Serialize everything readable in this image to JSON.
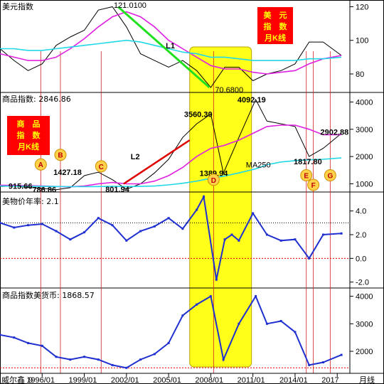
{
  "chart_data": [
    {
      "type": "line",
      "panel": "dollar-index",
      "title": "美元指数",
      "yticks": [
        80,
        100,
        120
      ],
      "ylim": [
        69,
        124
      ],
      "badge": [
        "美　元",
        "指　数",
        "月K线"
      ],
      "colors": {
        "price": "#000000",
        "ma_short": "#e020e0",
        "ma_long": "#20d8e8",
        "trend": "#20e020",
        "badge_bg": "#ff0000",
        "badge_text": "#ffff00"
      },
      "x": [
        1993,
        1994,
        1995,
        1996,
        1997,
        1998,
        1999,
        2000,
        2001,
        2002,
        2003,
        2004,
        2005,
        2006,
        2007,
        2008,
        2009,
        2010,
        2011,
        2012,
        2013,
        2014,
        2015,
        2016,
        2017.3
      ],
      "series": [
        {
          "key": "price",
          "values": [
            95,
            88,
            82,
            86,
            97,
            102,
            106,
            118,
            120,
            108,
            92,
            88,
            84,
            88,
            82,
            72,
            84,
            84,
            76,
            80,
            82,
            86,
            99,
            99,
            91
          ]
        },
        {
          "key": "ma_short",
          "values": [
            92,
            90,
            88,
            88,
            90,
            95,
            101,
            108,
            114,
            117,
            114,
            108,
            100,
            95,
            90,
            85,
            83,
            83,
            81,
            80,
            81,
            82,
            86,
            89,
            91
          ]
        },
        {
          "key": "ma_long",
          "values": [
            95,
            95,
            94,
            94,
            95,
            96,
            97,
            98,
            99,
            100,
            99,
            97,
            95,
            93,
            92,
            90,
            90,
            89,
            88,
            88,
            88,
            88,
            89,
            89,
            90
          ]
        }
      ],
      "annotations": [
        {
          "text": "121.0100",
          "x": 2001.1,
          "y": 121.01
        },
        {
          "text": "70.6800",
          "x": 2008.3,
          "y": 70.68
        },
        {
          "text": "L1",
          "x": 2004.8,
          "y": 97
        }
      ],
      "trendline": {
        "from": [
          2001.4,
          120
        ],
        "to": [
          2007.9,
          72
        ],
        "label": "L1"
      }
    },
    {
      "type": "line",
      "panel": "commodity-index",
      "title": "商品指数: 2846.86",
      "yticks": [
        1000,
        2000,
        3000,
        4000
      ],
      "ylim": [
        700,
        4350
      ],
      "badge": [
        "商　品",
        "指　数",
        "月K线"
      ],
      "colors": {
        "price": "#000000",
        "ma": "#e020e0",
        "ma250": "#20d8e8",
        "trend": "#e00000",
        "badge_bg": "#ff0000",
        "badge_text": "#ffff00"
      },
      "x": [
        1993,
        1994,
        1995,
        1996,
        1997,
        1998,
        1999,
        2000,
        2001,
        2002,
        2003,
        2004,
        2005,
        2006,
        2007,
        2008,
        2008.9,
        2010,
        2011.2,
        2012,
        2013,
        2014,
        2015,
        2016,
        2017.3
      ],
      "series": [
        {
          "key": "price",
          "values": [
            900,
            915,
            870,
            830,
            786,
            860,
            1300,
            1427,
            1150,
            802,
            1000,
            1400,
            1900,
            2700,
            3200,
            3560,
            1390,
            2700,
            4092,
            3300,
            3200,
            3100,
            2000,
            2300,
            2847
          ]
        },
        {
          "key": "ma",
          "values": [
            950,
            940,
            930,
            920,
            900,
            890,
            920,
            1000,
            1050,
            1000,
            1000,
            1100,
            1300,
            1600,
            2000,
            2300,
            2400,
            2600,
            2900,
            3100,
            3150,
            3150,
            3000,
            2800,
            2800
          ]
        },
        {
          "key": "ma250",
          "values": [
            920,
            915,
            910,
            905,
            900,
            895,
            895,
            900,
            905,
            900,
            905,
            920,
            960,
            1020,
            1100,
            1200,
            1280,
            1400,
            1550,
            1700,
            1800,
            1850,
            1880,
            1900,
            1950
          ]
        }
      ],
      "annotations": [
        {
          "text": "915.66",
          "x": 1993.6,
          "y": 915.66
        },
        {
          "text": "786.86",
          "x": 1995.3,
          "y": 786.86
        },
        {
          "text": "1427.18",
          "x": 1996.8,
          "y": 1427.18
        },
        {
          "text": "801.94",
          "x": 2000.5,
          "y": 801.94
        },
        {
          "text": "3560.30",
          "x": 2006.1,
          "y": 3560.3
        },
        {
          "text": "1389.94",
          "x": 2007.2,
          "y": 1389.94
        },
        {
          "text": "4092.19",
          "x": 2009.9,
          "y": 4092.19
        },
        {
          "text": "1817.80",
          "x": 2013.9,
          "y": 1817.8
        },
        {
          "text": "2902.88",
          "x": 2015.8,
          "y": 2902.88
        },
        {
          "text": "MA250",
          "x": 2010.5,
          "y": 1700
        },
        {
          "text": "L2",
          "x": 2002.3,
          "y": 2000
        }
      ],
      "trendline": {
        "from": [
          2001.8,
          1000
        ],
        "to": [
          2006.5,
          2600
        ],
        "label": "L2"
      }
    },
    {
      "type": "line",
      "panel": "dollar-inflation",
      "title": "美物价年率: 2.1",
      "yticks": [
        -2.0,
        0.0,
        2.0,
        4.0
      ],
      "ylim": [
        -2.5,
        5.6
      ],
      "refline": 0,
      "dotted_level": 3.0,
      "colors": {
        "line": "#2030d0",
        "marker": "#2030d0",
        "zero": "#e00000",
        "dots": "#000000"
      },
      "x": [
        1993,
        1994,
        1995,
        1996,
        1997,
        1998,
        1999,
        2000,
        2001,
        2002,
        2003,
        2004,
        2005,
        2006,
        2007,
        2007.5,
        2008.4,
        2009,
        2009.5,
        2010,
        2011,
        2012,
        2013,
        2014,
        2015,
        2016,
        2017.3
      ],
      "series": [
        {
          "key": "cpi",
          "values": [
            3.0,
            2.6,
            2.8,
            2.9,
            2.3,
            1.6,
            2.2,
            3.4,
            2.8,
            1.5,
            2.3,
            2.7,
            3.4,
            2.5,
            4.1,
            5.2,
            -1.8,
            1.6,
            2.0,
            1.5,
            3.8,
            2.0,
            1.5,
            1.6,
            0.0,
            2.0,
            2.1
          ]
        }
      ]
    },
    {
      "type": "line",
      "panel": "commodity-in-dollar",
      "title": "商品指数美货币: 1868.57",
      "yticks": [
        2000,
        3000,
        4000
      ],
      "ylim": [
        1200,
        4300
      ],
      "refline": 1400,
      "colors": {
        "line": "#2030d0",
        "marker": "#2030d0",
        "ref": "#e00000"
      },
      "x": [
        1993,
        1994,
        1995,
        1996,
        1997,
        1998,
        1999,
        2000,
        2001,
        2002,
        2003,
        2004,
        2005,
        2006,
        2007,
        2008,
        2008.9,
        2010,
        2011.2,
        2012,
        2013,
        2014,
        2015,
        2016,
        2017.3
      ],
      "series": [
        {
          "key": "value",
          "values": [
            2600,
            2500,
            2300,
            2200,
            1800,
            1700,
            1800,
            1700,
            1500,
            1400,
            1700,
            1900,
            2300,
            3300,
            3700,
            4000,
            1700,
            3000,
            4000,
            3000,
            3100,
            2700,
            1500,
            1600,
            1869
          ]
        }
      ]
    }
  ],
  "xaxis": {
    "brand": "威尔鑫",
    "brand_suffix": "9",
    "unit": "月线",
    "ticks": [
      {
        "label": "1996/01",
        "x": 1996
      },
      {
        "label": "1999/01",
        "x": 1999
      },
      {
        "label": "2002/01",
        "x": 2002
      },
      {
        "label": "2005/01",
        "x": 2005
      },
      {
        "label": "2008/01",
        "x": 2008
      },
      {
        "label": "2011/01",
        "x": 2011
      },
      {
        "label": "2014/01",
        "x": 2014
      },
      {
        "label": "2017",
        "x": 2017
      }
    ],
    "xlim": [
      1993,
      2017.9
    ]
  },
  "highlight": {
    "from": 2006.5,
    "to": 2010.9,
    "color": "#ffff1a"
  },
  "markers": [
    {
      "label": "A",
      "x": 1995.9,
      "panel": 1,
      "yfrac": 0.68
    },
    {
      "label": "B",
      "x": 1997.3,
      "panel": 1,
      "yfrac": 0.53
    },
    {
      "label": "C",
      "x": 2000.2,
      "panel": 1,
      "yfrac": 0.71
    },
    {
      "label": "D",
      "x": 2008.2,
      "panel": 1,
      "yfrac": 0.92
    },
    {
      "label": "E",
      "x": 2014.8,
      "panel": 1,
      "yfrac": 0.85
    },
    {
      "label": "F",
      "x": 2015.3,
      "panel": 1,
      "yfrac": 1.0
    },
    {
      "label": "G",
      "x": 2016.5,
      "panel": 1,
      "yfrac": 0.85
    }
  ]
}
